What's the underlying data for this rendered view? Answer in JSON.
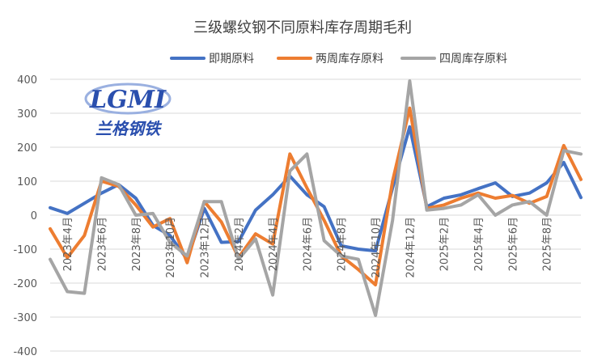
{
  "chart_data": {
    "type": "line",
    "title": "三级螺纹钢不同原料库存周期毛利",
    "xlabel": "",
    "ylabel": "",
    "ylim": [
      -400,
      400
    ],
    "yticks": [
      400,
      300,
      200,
      100,
      0,
      -100,
      -200,
      -300,
      -400
    ],
    "grid": true,
    "legend_position": "top",
    "x_tick_labels": [
      "2023年4月",
      "2023年6月",
      "2023年8月",
      "2023年10月",
      "2023年12月",
      "2024年2月",
      "2024年4月",
      "2024年6月",
      "2024年8月",
      "2024年10月",
      "2024年12月",
      "2025年2月",
      "2025年4月",
      "2025年6月",
      "2025年8月"
    ],
    "series": [
      {
        "name": "即期原料",
        "color": "#4472C4",
        "values": [
          22,
          5,
          35,
          65,
          90,
          50,
          -30,
          -60,
          -130,
          20,
          -80,
          -78,
          15,
          60,
          115,
          60,
          25,
          -90,
          -100,
          -105,
          80,
          260,
          25,
          50,
          60,
          78,
          95,
          55,
          65,
          95,
          155,
          52
        ]
      },
      {
        "name": "两周库存原料",
        "color": "#ED7D31",
        "values": [
          -40,
          -125,
          -60,
          100,
          85,
          30,
          -35,
          -10,
          -140,
          40,
          -20,
          -125,
          -55,
          -85,
          180,
          80,
          -15,
          -120,
          -160,
          -205,
          100,
          315,
          20,
          30,
          50,
          65,
          50,
          58,
          35,
          55,
          205,
          105
        ]
      },
      {
        "name": "四周库存原料",
        "color": "#A5A5A5",
        "values": [
          -130,
          -225,
          -230,
          110,
          90,
          0,
          5,
          -80,
          -120,
          40,
          40,
          -130,
          -70,
          -235,
          130,
          180,
          -75,
          -120,
          -130,
          -295,
          -15,
          395,
          15,
          20,
          30,
          60,
          0,
          30,
          40,
          0,
          190,
          180
        ]
      }
    ]
  },
  "logo": {
    "abbr": "LGMI",
    "name": "兰格钢铁"
  }
}
